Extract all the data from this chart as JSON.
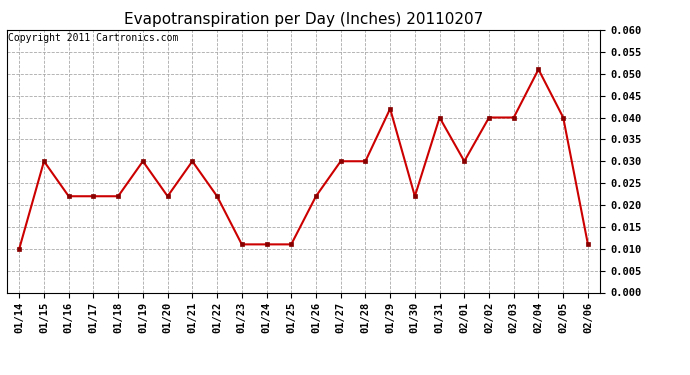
{
  "title": "Evapotranspiration per Day (Inches) 20110207",
  "copyright_text": "Copyright 2011 Cartronics.com",
  "labels": [
    "01/14",
    "01/15",
    "01/16",
    "01/17",
    "01/18",
    "01/19",
    "01/20",
    "01/21",
    "01/22",
    "01/23",
    "01/24",
    "01/25",
    "01/26",
    "01/27",
    "01/28",
    "01/29",
    "01/30",
    "01/31",
    "02/01",
    "02/02",
    "02/03",
    "02/04",
    "02/05",
    "02/06"
  ],
  "values": [
    0.01,
    0.03,
    0.022,
    0.022,
    0.022,
    0.03,
    0.022,
    0.03,
    0.022,
    0.011,
    0.011,
    0.011,
    0.022,
    0.03,
    0.03,
    0.042,
    0.022,
    0.04,
    0.03,
    0.04,
    0.04,
    0.051,
    0.04,
    0.011
  ],
  "line_color": "#cc0000",
  "marker_color": "#880000",
  "background_color": "#ffffff",
  "plot_bg_color": "#ffffff",
  "grid_color": "#aaaaaa",
  "ylim": [
    0.0,
    0.06
  ],
  "ytick_interval": 0.005,
  "title_fontsize": 11,
  "copyright_fontsize": 7,
  "tick_fontsize": 7.5,
  "line_width": 1.5,
  "marker_size": 3
}
